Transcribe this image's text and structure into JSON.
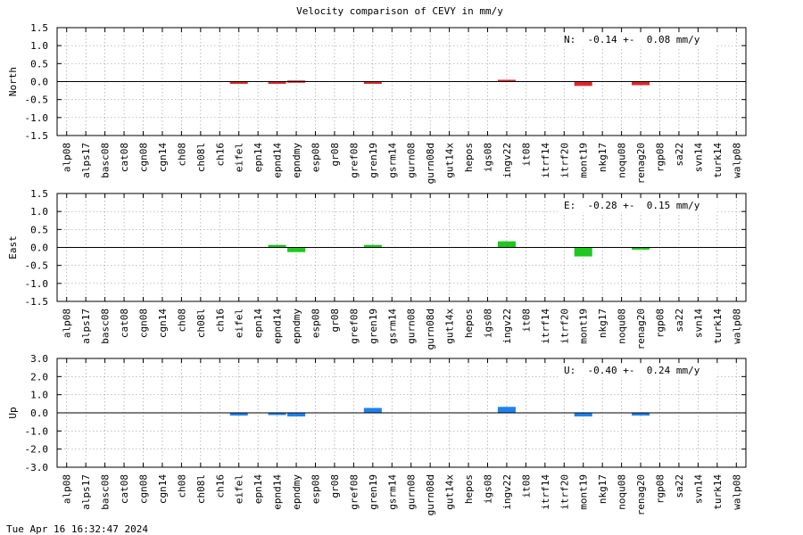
{
  "title": "Velocity comparison of CEVY in mm/y",
  "timestamp": "Tue Apr 16 16:32:47 2024",
  "chart_data": [
    {
      "type": "bar",
      "ylabel": "North",
      "ylim": [
        -1.5,
        1.5
      ],
      "yticks": [
        "1.5",
        "1.0",
        "0.5",
        "0.0",
        "-0.5",
        "-1.0",
        "-1.5"
      ],
      "ytick_values": [
        1.5,
        1.0,
        0.5,
        0.0,
        -0.5,
        -1.0,
        -1.5
      ],
      "annotation": "N:  -0.14 +-  0.08 mm/y",
      "color": "#e0262b",
      "grid": true,
      "categories": [
        "alp08",
        "alps17",
        "basc08",
        "cat08",
        "cgn08",
        "cgn14",
        "ch08",
        "ch08l",
        "ch16",
        "eifel",
        "epn14",
        "epnd14",
        "epndmy",
        "esp08",
        "gr08",
        "gref08",
        "gren19",
        "gsrm14",
        "gurn08",
        "gurn08d",
        "gut14x",
        "hepos",
        "igs08",
        "ingv22",
        "it08",
        "itrf14",
        "itrf20",
        "mont19",
        "nkg17",
        "noqu08",
        "renag20",
        "rgp08",
        "sa22",
        "svn14",
        "turk14",
        "walp08"
      ],
      "values": [
        0,
        0,
        0,
        0,
        0,
        0,
        0,
        0,
        0,
        -0.02,
        0,
        -0.03,
        0.03,
        0,
        0,
        0,
        -0.02,
        0,
        0,
        0,
        0,
        0,
        0,
        0.05,
        0,
        0,
        0,
        -0.12,
        0,
        0,
        -0.1,
        0,
        0,
        0,
        0,
        0
      ]
    },
    {
      "type": "bar",
      "ylabel": "East",
      "ylim": [
        -1.5,
        1.5
      ],
      "yticks": [
        "1.5",
        "1.0",
        "0.5",
        "0.0",
        "-0.5",
        "-1.0",
        "-1.5"
      ],
      "ytick_values": [
        1.5,
        1.0,
        0.5,
        0.0,
        -0.5,
        -1.0,
        -1.5
      ],
      "annotation": "E:  -0.28 +-  0.15 mm/y",
      "color": "#1ec81e",
      "grid": true,
      "categories": [
        "alp08",
        "alps17",
        "basc08",
        "cat08",
        "cgn08",
        "cgn14",
        "ch08",
        "ch08l",
        "ch16",
        "eifel",
        "epn14",
        "epnd14",
        "epndmy",
        "esp08",
        "gr08",
        "gref08",
        "gren19",
        "gsrm14",
        "gurn08",
        "gurn08d",
        "gut14x",
        "hepos",
        "igs08",
        "ingv22",
        "it08",
        "itrf14",
        "itrf20",
        "mont19",
        "nkg17",
        "noqu08",
        "renag20",
        "rgp08",
        "sa22",
        "svn14",
        "turk14",
        "walp08"
      ],
      "values": [
        0,
        0,
        0,
        0,
        0,
        0,
        0,
        0,
        0,
        0,
        0,
        0.07,
        -0.13,
        0,
        0,
        0,
        0.07,
        0,
        0,
        0,
        0,
        0,
        0,
        0.17,
        0,
        0,
        0,
        -0.25,
        0,
        0,
        -0.02,
        0,
        0,
        0,
        0,
        0
      ]
    },
    {
      "type": "bar",
      "ylabel": "Up",
      "ylim": [
        -3.0,
        3.0
      ],
      "yticks": [
        "3.0",
        "2.0",
        "1.0",
        "0.0",
        "-1.0",
        "-2.0",
        "-3.0"
      ],
      "ytick_values": [
        3.0,
        2.0,
        1.0,
        0.0,
        -1.0,
        -2.0,
        -3.0
      ],
      "annotation": "U:  -0.40 +-  0.24 mm/y",
      "color": "#1e82f0",
      "grid": true,
      "categories": [
        "alp08",
        "alps17",
        "basc08",
        "cat08",
        "cgn08",
        "cgn14",
        "ch08",
        "ch08l",
        "ch16",
        "eifel",
        "epn14",
        "epnd14",
        "epndmy",
        "esp08",
        "gr08",
        "gref08",
        "gren19",
        "gsrm14",
        "gurn08",
        "gurn08d",
        "gut14x",
        "hepos",
        "igs08",
        "ingv22",
        "it08",
        "itrf14",
        "itrf20",
        "mont19",
        "nkg17",
        "noqu08",
        "renag20",
        "rgp08",
        "sa22",
        "svn14",
        "turk14",
        "walp08"
      ],
      "values": [
        0,
        0,
        0,
        0,
        0,
        0,
        0,
        0,
        0,
        -0.15,
        0,
        -0.1,
        -0.2,
        0,
        0,
        0,
        0.27,
        0,
        0,
        0,
        0,
        0,
        0,
        0.33,
        0,
        0,
        0,
        -0.2,
        0,
        0,
        -0.15,
        0,
        0,
        0,
        0,
        0
      ]
    }
  ]
}
